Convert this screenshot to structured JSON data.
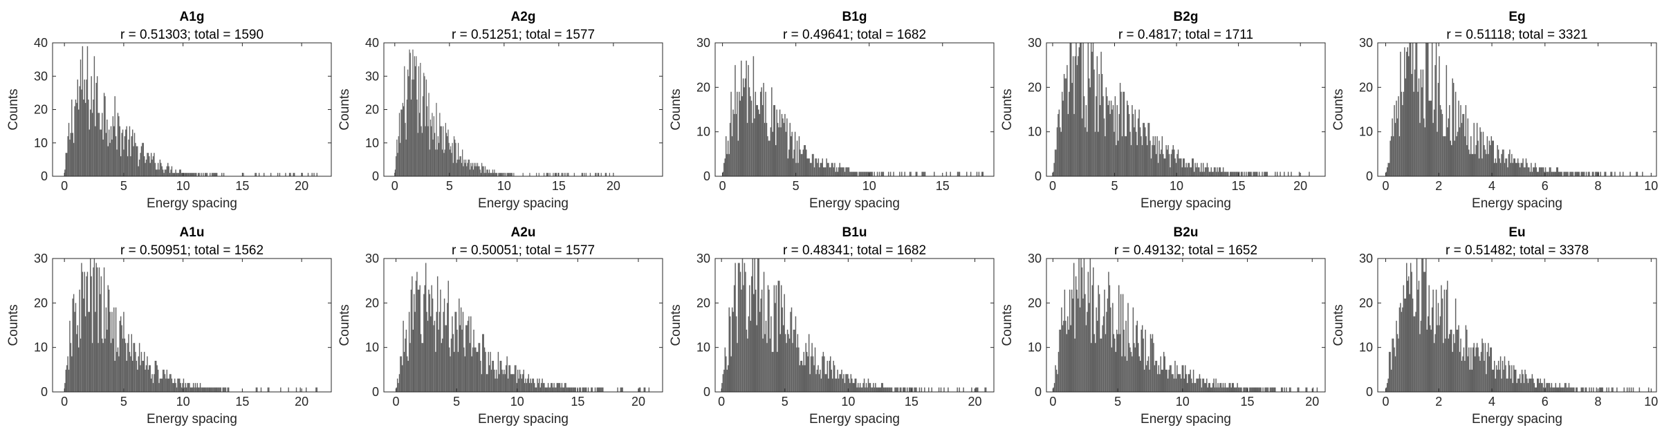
{
  "figure": {
    "xlabel": "Energy spacing",
    "ylabel": "Counts",
    "bar_color": "#606060",
    "axis_color": "#262626"
  },
  "chart_data": [
    {
      "type": "histogram",
      "title": "A1g",
      "subtitle": "r = 0.51303; total = 1590",
      "xlabel": "Energy spacing",
      "ylabel": "Counts",
      "xlim": [
        -1,
        22.5
      ],
      "ylim": [
        0,
        40
      ],
      "xticks": [
        0,
        5,
        10,
        15,
        20
      ],
      "yticks": [
        0,
        10,
        20,
        30,
        40
      ],
      "max_x": 21.5,
      "peak_x": 1.8,
      "peak_count": 33
    },
    {
      "type": "histogram",
      "title": "A2g",
      "subtitle": "r = 0.51251; total = 1577",
      "xlabel": "Energy spacing",
      "ylabel": "Counts",
      "xlim": [
        -1,
        24.5
      ],
      "ylim": [
        0,
        40
      ],
      "xticks": [
        0,
        5,
        10,
        15,
        20
      ],
      "yticks": [
        0,
        10,
        20,
        30,
        40
      ],
      "max_x": 20,
      "peak_x": 1.6,
      "peak_count": 32
    },
    {
      "type": "histogram",
      "title": "B1g",
      "subtitle": "r = 0.49641; total = 1682",
      "xlabel": "Energy spacing",
      "ylabel": "Counts",
      "xlim": [
        -0.5,
        18.5
      ],
      "ylim": [
        0,
        30
      ],
      "xticks": [
        0,
        5,
        10,
        15
      ],
      "yticks": [
        0,
        10,
        20,
        30
      ],
      "max_x": 18,
      "peak_x": 1.6,
      "peak_count": 24
    },
    {
      "type": "histogram",
      "title": "B2g",
      "subtitle": "r = 0.4817; total = 1711",
      "xlabel": "Energy spacing",
      "ylabel": "Counts",
      "xlim": [
        -0.5,
        22
      ],
      "ylim": [
        0,
        30
      ],
      "xticks": [
        0,
        5,
        10,
        15,
        20
      ],
      "yticks": [
        0,
        10,
        20,
        30
      ],
      "max_x": 21,
      "peak_x": 2.4,
      "peak_count": 30
    },
    {
      "type": "histogram",
      "title": "Eg",
      "subtitle": "r = 0.51118; total = 3321",
      "xlabel": "Energy spacing",
      "ylabel": "Counts",
      "xlim": [
        -0.3,
        10.2
      ],
      "ylim": [
        0,
        30
      ],
      "xticks": [
        0,
        2,
        4,
        6,
        8,
        10
      ],
      "yticks": [
        0,
        10,
        20,
        30
      ],
      "max_x": 10,
      "peak_x": 1.1,
      "peak_count": 30
    },
    {
      "type": "histogram",
      "title": "A1u",
      "subtitle": "r = 0.50951; total = 1562",
      "xlabel": "Energy spacing",
      "ylabel": "Counts",
      "xlim": [
        -1,
        22.5
      ],
      "ylim": [
        0,
        30
      ],
      "xticks": [
        0,
        5,
        10,
        15,
        20
      ],
      "yticks": [
        0,
        10,
        20,
        30
      ],
      "max_x": 21.5,
      "peak_x": 2,
      "peak_count": 27
    },
    {
      "type": "histogram",
      "title": "A2u",
      "subtitle": "r = 0.50051; total = 1577",
      "xlabel": "Energy spacing",
      "ylabel": "Counts",
      "xlim": [
        -1,
        22
      ],
      "ylim": [
        0,
        30
      ],
      "xticks": [
        0,
        5,
        10,
        15,
        20
      ],
      "yticks": [
        0,
        10,
        20,
        30
      ],
      "max_x": 21,
      "peak_x": 2.5,
      "peak_count": 25
    },
    {
      "type": "histogram",
      "title": "B1u",
      "subtitle": "r = 0.48341; total = 1682",
      "xlabel": "Energy spacing",
      "ylabel": "Counts",
      "xlim": [
        -0.5,
        21.5
      ],
      "ylim": [
        0,
        30
      ],
      "xticks": [
        0,
        5,
        10,
        15,
        20
      ],
      "yticks": [
        0,
        10,
        20,
        30
      ],
      "max_x": 21,
      "peak_x": 2.2,
      "peak_count": 30
    },
    {
      "type": "histogram",
      "title": "B2u",
      "subtitle": "r = 0.49132; total = 1652",
      "xlabel": "Energy spacing",
      "ylabel": "Counts",
      "xlim": [
        -0.5,
        21
      ],
      "ylim": [
        0,
        30
      ],
      "xticks": [
        0,
        5,
        10,
        15,
        20
      ],
      "yticks": [
        0,
        10,
        20,
        30
      ],
      "max_x": 20.5,
      "peak_x": 2.5,
      "peak_count": 28
    },
    {
      "type": "histogram",
      "title": "Eu",
      "subtitle": "r = 0.51482; total = 3378",
      "xlabel": "Energy spacing",
      "ylabel": "Counts",
      "xlim": [
        -0.3,
        10.2
      ],
      "ylim": [
        0,
        30
      ],
      "xticks": [
        0,
        2,
        4,
        6,
        8,
        10
      ],
      "yticks": [
        0,
        10,
        20,
        30
      ],
      "max_x": 10,
      "peak_x": 1.2,
      "peak_count": 27
    }
  ]
}
